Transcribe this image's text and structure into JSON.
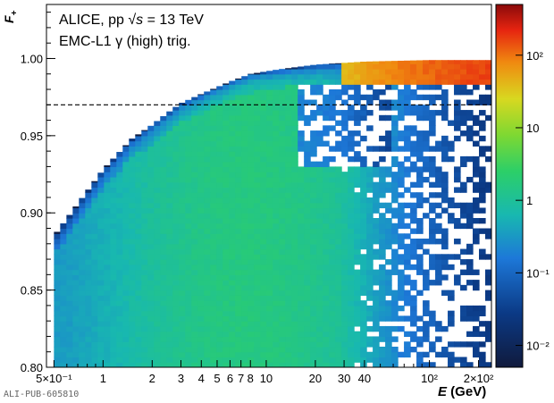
{
  "figure": {
    "annotation_line1": "ALICE, pp ",
    "annotation_sqrt": "√s",
    "annotation_energy": " = 13 TeV",
    "annotation_line2": "EMC-L1 γ (high) trig.",
    "publication_id": "ALI-PUB-605810"
  },
  "chart_data": {
    "type": "heatmap",
    "xlabel": "E (GeV)",
    "ylabel": "F+",
    "x_scale": "log",
    "xlim": [
      0.45,
      240
    ],
    "ylim": [
      0.8,
      1.035
    ],
    "x_tick_labels": [
      "5×10⁻¹",
      "1",
      "2",
      "3",
      "4",
      "5",
      "6",
      "7",
      "8",
      "10",
      "20",
      "30",
      "40",
      "10²",
      "2×10²"
    ],
    "x_tick_values": [
      0.5,
      1,
      2,
      3,
      4,
      5,
      6,
      7,
      8,
      10,
      20,
      30,
      40,
      100,
      200
    ],
    "y_tick_values": [
      0.8,
      0.85,
      0.9,
      0.95,
      1.0
    ],
    "y_tick_labels": [
      "0.80",
      "0.85",
      "0.90",
      "0.95",
      "1.00"
    ],
    "z_scale": "log",
    "zlim": [
      0.005,
      500
    ],
    "z_tick_labels": [
      "10⁻²",
      "10⁻¹",
      "1",
      "10",
      "10²"
    ],
    "z_tick_values": [
      0.01,
      0.1,
      1,
      10,
      100
    ],
    "cut_line_y": 0.97,
    "upper_edge": [
      {
        "e": 0.5,
        "f": 0.885
      },
      {
        "e": 1.0,
        "f": 0.928
      },
      {
        "e": 1.5,
        "f": 0.948
      },
      {
        "e": 2.0,
        "f": 0.957
      },
      {
        "e": 2.5,
        "f": 0.965
      },
      {
        "e": 3.0,
        "f": 0.971
      },
      {
        "e": 4.0,
        "f": 0.977
      },
      {
        "e": 6.0,
        "f": 0.985
      },
      {
        "e": 8.0,
        "f": 0.99
      },
      {
        "e": 12.0,
        "f": 0.993
      },
      {
        "e": 20.0,
        "f": 0.996
      },
      {
        "e": 40.0,
        "f": 0.998
      },
      {
        "e": 100.0,
        "f": 0.999
      },
      {
        "e": 240.0,
        "f": 0.999
      }
    ]
  }
}
